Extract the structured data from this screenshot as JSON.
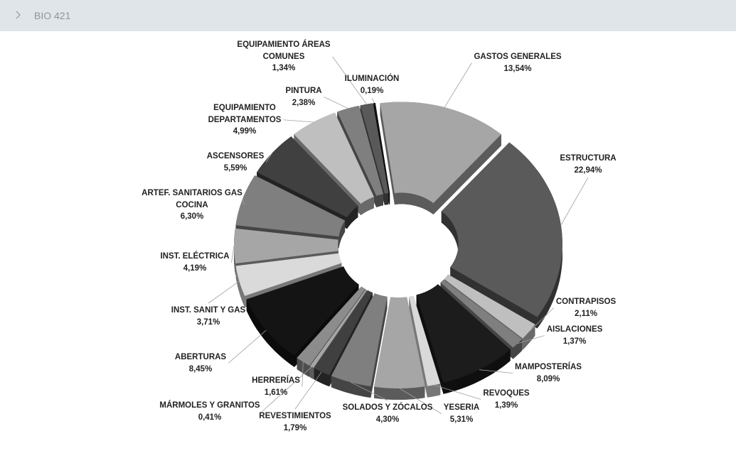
{
  "header": {
    "title": "BIO 421"
  },
  "chart_data": {
    "type": "pie",
    "categories": [
      "GASTOS GENERALES",
      "ESTRUCTURA",
      "CONTRAPISOS",
      "AISLACIONES",
      "MAMPOSTERÍAS",
      "REVOQUES",
      "YESERIA",
      "SOLADOS Y ZÓCALOS",
      "REVESTIMIENTOS",
      "MÁRMOLES Y GRANITOS",
      "HERRERÍAS",
      "ABERTURAS",
      "INST. SANIT Y GAS",
      "INST. ELÉCTRICA",
      "ARTEF. SANITARIOS GAS\nCOCINA",
      "ASCENSORES",
      "EQUIPAMIENTO\nDEPARTAMENTOS",
      "PINTURA",
      "EQUIPAMIENTO ÁREAS\nCOMUNES",
      "ILUMINACIÓN"
    ],
    "values": [
      13.54,
      22.94,
      2.11,
      1.37,
      8.09,
      1.39,
      5.31,
      4.3,
      1.79,
      0.41,
      1.61,
      8.45,
      3.71,
      4.19,
      6.3,
      5.59,
      4.99,
      2.38,
      1.34,
      0.19
    ],
    "value_labels": [
      "13,54%",
      "22,94%",
      "2,11%",
      "1,37%",
      "8,09%",
      "1,39%",
      "5,31%",
      "4,30%",
      "1,79%",
      "0,41%",
      "1,61%",
      "8,45%",
      "3,71%",
      "4,19%",
      "6,30%",
      "5,59%",
      "4,99%",
      "2,38%",
      "1,34%",
      "0,19%"
    ],
    "colors": [
      "#a6a6a6",
      "#5a5a5a",
      "#bfbfbf",
      "#7f7f7f",
      "#1c1c1c",
      "#d9d9d9",
      "#a6a6a6",
      "#7f7f7f",
      "#404040",
      "#a6a6a6",
      "#8c8c8c",
      "#141414",
      "#dadada",
      "#a6a6a6",
      "#7f7f7f",
      "#404040",
      "#bfbfbf",
      "#7f7f7f",
      "#595959",
      "#111111"
    ]
  }
}
